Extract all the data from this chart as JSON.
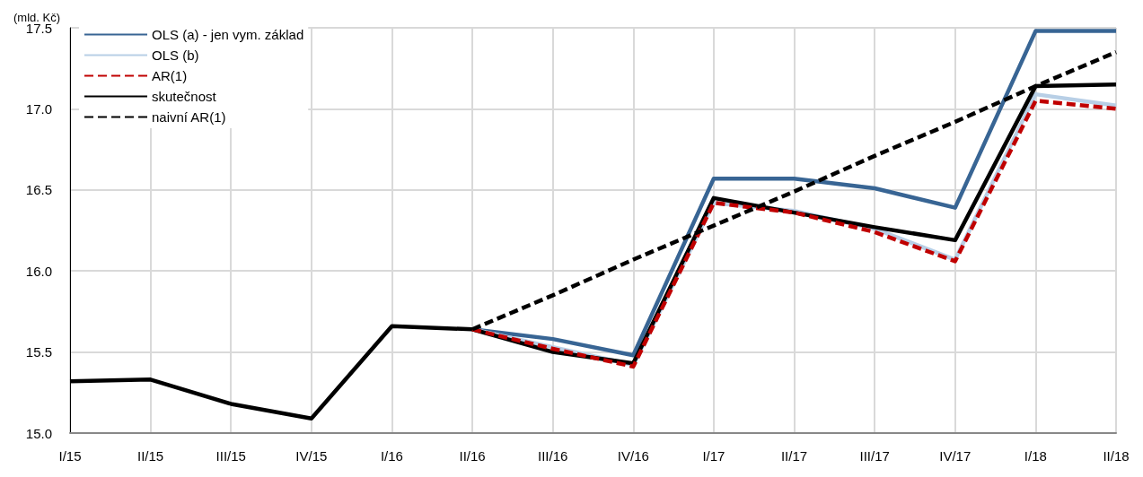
{
  "chart_data": {
    "type": "line",
    "ylabel": "(mld. Kč)",
    "categories": [
      "I/15",
      "II/15",
      "III/15",
      "IV/15",
      "I/16",
      "II/16",
      "III/16",
      "IV/16",
      "I/17",
      "II/17",
      "III/17",
      "IV/17",
      "I/18",
      "II/18"
    ],
    "ylim": [
      15.0,
      17.5
    ],
    "yticks": [
      {
        "value": 15.0,
        "label": "15.0"
      },
      {
        "value": 15.5,
        "label": "15.5"
      },
      {
        "value": 16.0,
        "label": "16.0"
      },
      {
        "value": 16.5,
        "label": "16.5"
      },
      {
        "value": 17.0,
        "label": "17.0"
      },
      {
        "value": 17.5,
        "label": "17.5"
      }
    ],
    "grid": true,
    "legend": "top left",
    "marker": "none",
    "series": [
      {
        "name": "OLS (a) - jen vym. základ",
        "color": "#386594",
        "line_style": "solid",
        "values": [
          null,
          null,
          null,
          null,
          null,
          15.64,
          15.58,
          15.48,
          16.57,
          16.57,
          16.51,
          16.39,
          17.48,
          17.48
        ]
      },
      {
        "name": "OLS (b)",
        "color": "#b8cfe6",
        "line_style": "solid",
        "values": [
          null,
          null,
          null,
          null,
          null,
          15.64,
          15.53,
          15.42,
          16.42,
          16.37,
          16.26,
          16.07,
          17.09,
          17.02
        ]
      },
      {
        "name": "AR(1)",
        "color": "#c00000",
        "line_style": "dashed",
        "values": [
          null,
          null,
          null,
          null,
          null,
          15.64,
          15.52,
          15.41,
          16.42,
          16.36,
          16.24,
          16.06,
          17.05,
          17.0
        ]
      },
      {
        "name": "skutečnost",
        "color": "#000000",
        "line_style": "solid",
        "values": [
          15.32,
          15.33,
          15.18,
          15.09,
          15.66,
          15.64,
          15.5,
          15.43,
          16.45,
          16.36,
          16.27,
          16.19,
          17.14,
          17.15
        ]
      },
      {
        "name": "naivní AR(1)",
        "color": "#000000",
        "line_style": "dashed",
        "values": [
          null,
          null,
          null,
          null,
          null,
          15.64,
          15.85,
          16.07,
          16.28,
          16.49,
          16.71,
          16.92,
          17.14,
          17.35
        ]
      }
    ]
  }
}
